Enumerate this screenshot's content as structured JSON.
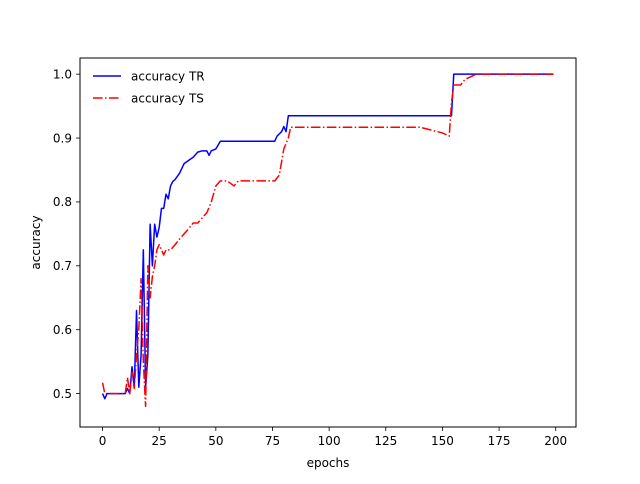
{
  "chart_data": {
    "type": "line",
    "title": "",
    "xlabel": "epochs",
    "ylabel": "accuracy",
    "xlim": [
      -9.95,
      208.95
    ],
    "ylim": [
      0.4477,
      1.0253
    ],
    "xticks": [
      0,
      25,
      50,
      75,
      100,
      125,
      150,
      175,
      200
    ],
    "yticks": [
      0.5,
      0.6,
      0.7,
      0.8,
      0.9,
      1.0
    ],
    "ytick_labels": [
      "0.5",
      "0.6",
      "0.7",
      "0.8",
      "0.9",
      "1.0"
    ],
    "grid": false,
    "legend": {
      "position": "top-left",
      "entries": [
        "accuracy TR",
        "accuracy TS"
      ]
    },
    "series": [
      {
        "name": "accuracy TR",
        "color": "#0000ff",
        "linestyle": "solid",
        "points": [
          [
            0,
            0.5
          ],
          [
            1,
            0.492
          ],
          [
            2,
            0.5
          ],
          [
            5,
            0.5
          ],
          [
            8,
            0.5
          ],
          [
            10,
            0.5
          ],
          [
            11,
            0.508
          ],
          [
            12,
            0.5
          ],
          [
            13,
            0.542
          ],
          [
            14,
            0.51
          ],
          [
            15,
            0.63
          ],
          [
            16,
            0.51
          ],
          [
            17,
            0.56
          ],
          [
            18,
            0.725
          ],
          [
            19,
            0.51
          ],
          [
            20,
            0.56
          ],
          [
            21,
            0.765
          ],
          [
            22,
            0.7
          ],
          [
            23,
            0.765
          ],
          [
            24,
            0.745
          ],
          [
            25,
            0.76
          ],
          [
            26,
            0.79
          ],
          [
            27,
            0.79
          ],
          [
            28,
            0.812
          ],
          [
            29,
            0.805
          ],
          [
            30,
            0.825
          ],
          [
            31,
            0.832
          ],
          [
            32,
            0.835
          ],
          [
            34,
            0.845
          ],
          [
            36,
            0.86
          ],
          [
            38,
            0.865
          ],
          [
            40,
            0.87
          ],
          [
            42,
            0.878
          ],
          [
            44,
            0.88
          ],
          [
            46,
            0.88
          ],
          [
            47,
            0.873
          ],
          [
            48,
            0.88
          ],
          [
            50,
            0.883
          ],
          [
            52,
            0.895
          ],
          [
            55,
            0.895
          ],
          [
            60,
            0.895
          ],
          [
            65,
            0.895
          ],
          [
            70,
            0.895
          ],
          [
            76,
            0.895
          ],
          [
            77,
            0.903
          ],
          [
            79,
            0.91
          ],
          [
            80,
            0.918
          ],
          [
            81,
            0.91
          ],
          [
            82,
            0.935
          ],
          [
            90,
            0.935
          ],
          [
            100,
            0.935
          ],
          [
            120,
            0.935
          ],
          [
            140,
            0.935
          ],
          [
            154,
            0.935
          ],
          [
            155,
            1.0
          ],
          [
            175,
            1.0
          ],
          [
            199,
            1.0
          ]
        ]
      },
      {
        "name": "accuracy TS",
        "color": "#ff0000",
        "linestyle": "dashdot",
        "points": [
          [
            0,
            0.517
          ],
          [
            1,
            0.5
          ],
          [
            5,
            0.5
          ],
          [
            10,
            0.5
          ],
          [
            11,
            0.525
          ],
          [
            12,
            0.5
          ],
          [
            13,
            0.533
          ],
          [
            14,
            0.508
          ],
          [
            15,
            0.56
          ],
          [
            16,
            0.6
          ],
          [
            17,
            0.68
          ],
          [
            18,
            0.55
          ],
          [
            19,
            0.48
          ],
          [
            20,
            0.7
          ],
          [
            21,
            0.65
          ],
          [
            22,
            0.683
          ],
          [
            23,
            0.7
          ],
          [
            24,
            0.725
          ],
          [
            25,
            0.733
          ],
          [
            26,
            0.725
          ],
          [
            27,
            0.717
          ],
          [
            28,
            0.725
          ],
          [
            30,
            0.725
          ],
          [
            32,
            0.733
          ],
          [
            34,
            0.742
          ],
          [
            36,
            0.75
          ],
          [
            38,
            0.758
          ],
          [
            40,
            0.767
          ],
          [
            42,
            0.767
          ],
          [
            44,
            0.775
          ],
          [
            46,
            0.783
          ],
          [
            48,
            0.8
          ],
          [
            50,
            0.825
          ],
          [
            52,
            0.833
          ],
          [
            55,
            0.833
          ],
          [
            58,
            0.825
          ],
          [
            60,
            0.833
          ],
          [
            65,
            0.833
          ],
          [
            70,
            0.833
          ],
          [
            76,
            0.833
          ],
          [
            78,
            0.842
          ],
          [
            80,
            0.883
          ],
          [
            82,
            0.9
          ],
          [
            83,
            0.917
          ],
          [
            90,
            0.917
          ],
          [
            100,
            0.917
          ],
          [
            120,
            0.917
          ],
          [
            140,
            0.917
          ],
          [
            150,
            0.908
          ],
          [
            153,
            0.903
          ],
          [
            154,
            0.955
          ],
          [
            155,
            0.983
          ],
          [
            158,
            0.983
          ],
          [
            160,
            0.992
          ],
          [
            165,
            1.0
          ],
          [
            199,
            1.0
          ]
        ]
      }
    ]
  }
}
